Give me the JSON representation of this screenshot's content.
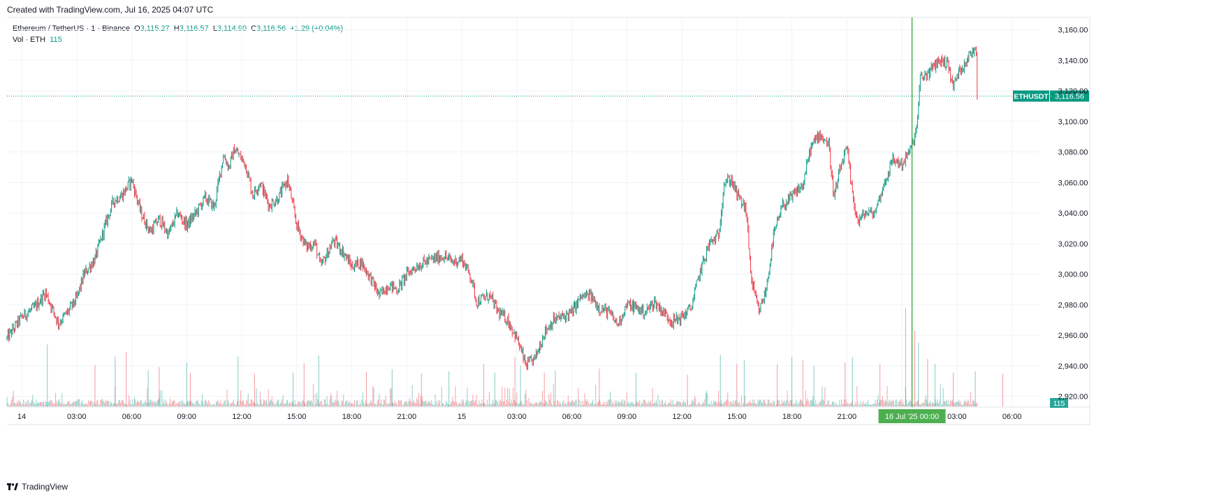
{
  "header": {
    "created_text": "Created with TradingView.com, Jul 16, 2025 04:07 UTC"
  },
  "legend": {
    "symbol": "Ethereum / TetherUS · 1 · Binance",
    "open_label": "O",
    "open": "3,115.27",
    "high_label": "H",
    "high": "3,116.57",
    "low_label": "L",
    "low": "3,114.90",
    "close_label": "C",
    "close": "3,116.56",
    "change": "+1.29 (+0.04%)",
    "vol_label": "Vol · ETH",
    "vol_value": "115"
  },
  "footer": {
    "brand": "TradingView"
  },
  "colors": {
    "up": "#089981",
    "down": "#f23645",
    "cursor": "#4caf50",
    "grid": "#f0f3fa",
    "axis_text": "#131722"
  },
  "chart_data": {
    "type": "candlestick",
    "symbol": "ETHUSDT",
    "interval": "1",
    "last_price": 3116.56,
    "last_price_label": "3,116.56",
    "price_tag_symbol": "ETHUSDT",
    "volume_tag": "115",
    "ylim": [
      2913,
      3168
    ],
    "y_ticks": [
      "3,160.00",
      "3,140.00",
      "3,120.00",
      "3,100.00",
      "3,080.00",
      "3,060.00",
      "3,040.00",
      "3,020.00",
      "3,000.00",
      "2,980.00",
      "2,960.00",
      "2,940.00",
      "2,920.00"
    ],
    "y_tick_values": [
      3160,
      3140,
      3120,
      3100,
      3080,
      3060,
      3040,
      3020,
      3000,
      2980,
      2960,
      2940,
      2920
    ],
    "x_ticks": [
      "14",
      "03:00",
      "06:00",
      "09:00",
      "12:00",
      "15:00",
      "18:00",
      "21:00",
      "15",
      "03:00",
      "06:00",
      "09:00",
      "12:00",
      "15:00",
      "18:00",
      "21:00",
      "00:00",
      "03:00",
      "06:00"
    ],
    "x_tick_hours": [
      0,
      3,
      6,
      9,
      12,
      15,
      18,
      21,
      24,
      27,
      30,
      33,
      36,
      39,
      42,
      45,
      48,
      51,
      54
    ],
    "xlim_hours": [
      -0.8,
      55.5
    ],
    "last_bar_hour": 52.1,
    "cursor_hour": 48.55,
    "cursor_label": "16 Jul '25   00:00",
    "grid": true,
    "price_path": [
      [
        -0.8,
        2958
      ],
      [
        0,
        2972
      ],
      [
        0.7,
        2978
      ],
      [
        1.3,
        2988
      ],
      [
        2,
        2968
      ],
      [
        2.5,
        2975
      ],
      [
        3,
        2984
      ],
      [
        3.4,
        3000
      ],
      [
        4,
        3010
      ],
      [
        4.5,
        3030
      ],
      [
        5,
        3048
      ],
      [
        5.5,
        3052
      ],
      [
        6,
        3062
      ],
      [
        6.5,
        3040
      ],
      [
        7,
        3028
      ],
      [
        7.5,
        3036
      ],
      [
        8,
        3026
      ],
      [
        8.5,
        3040
      ],
      [
        9,
        3032
      ],
      [
        9.5,
        3040
      ],
      [
        10,
        3050
      ],
      [
        10.5,
        3044
      ],
      [
        11,
        3078
      ],
      [
        11.3,
        3070
      ],
      [
        11.6,
        3082
      ],
      [
        12.2,
        3072
      ],
      [
        12.6,
        3052
      ],
      [
        13,
        3060
      ],
      [
        13.5,
        3045
      ],
      [
        14,
        3050
      ],
      [
        14.5,
        3062
      ],
      [
        15,
        3032
      ],
      [
        15.5,
        3018
      ],
      [
        16,
        3020
      ],
      [
        16.3,
        3005
      ],
      [
        16.6,
        3012
      ],
      [
        17,
        3022
      ],
      [
        17.5,
        3015
      ],
      [
        18,
        3005
      ],
      [
        18.5,
        3008
      ],
      [
        19,
        2998
      ],
      [
        19.5,
        2986
      ],
      [
        20,
        2993
      ],
      [
        20.5,
        2990
      ],
      [
        21,
        3000
      ],
      [
        21.5,
        3005
      ],
      [
        22,
        3008
      ],
      [
        22.5,
        3010
      ],
      [
        23,
        3012
      ],
      [
        23.5,
        3008
      ],
      [
        24,
        3010
      ],
      [
        24.5,
        2998
      ],
      [
        24.8,
        2982
      ],
      [
        25.5,
        2986
      ],
      [
        26,
        2975
      ],
      [
        26.5,
        2970
      ],
      [
        27,
        2958
      ],
      [
        27.5,
        2940
      ],
      [
        28,
        2945
      ],
      [
        28.5,
        2962
      ],
      [
        29,
        2970
      ],
      [
        29.5,
        2972
      ],
      [
        30,
        2975
      ],
      [
        30.5,
        2985
      ],
      [
        31,
        2986
      ],
      [
        31.5,
        2978
      ],
      [
        32,
        2975
      ],
      [
        32.5,
        2967
      ],
      [
        33,
        2980
      ],
      [
        33.5,
        2978
      ],
      [
        34,
        2975
      ],
      [
        34.5,
        2982
      ],
      [
        35,
        2975
      ],
      [
        35.5,
        2969
      ],
      [
        36,
        2972
      ],
      [
        36.5,
        2978
      ],
      [
        37,
        3002
      ],
      [
        37.5,
        3020
      ],
      [
        38,
        3025
      ],
      [
        38.3,
        3060
      ],
      [
        38.7,
        3062
      ],
      [
        39,
        3052
      ],
      [
        39.5,
        3042
      ],
      [
        39.8,
        2995
      ],
      [
        40.2,
        2975
      ],
      [
        40.6,
        2990
      ],
      [
        41,
        3025
      ],
      [
        41.5,
        3045
      ],
      [
        42,
        3050
      ],
      [
        42.3,
        3055
      ],
      [
        42.6,
        3058
      ],
      [
        43,
        3082
      ],
      [
        43.5,
        3092
      ],
      [
        44,
        3085
      ],
      [
        44.3,
        3050
      ],
      [
        44.7,
        3072
      ],
      [
        45,
        3082
      ],
      [
        45.3,
        3052
      ],
      [
        45.6,
        3034
      ],
      [
        46,
        3040
      ],
      [
        46.5,
        3040
      ],
      [
        47,
        3058
      ],
      [
        47.5,
        3075
      ],
      [
        48,
        3072
      ],
      [
        48.5,
        3082
      ],
      [
        48.8,
        3095
      ],
      [
        49,
        3128
      ],
      [
        49.5,
        3132
      ],
      [
        50,
        3140
      ],
      [
        50.5,
        3138
      ],
      [
        50.8,
        3122
      ],
      [
        51,
        3130
      ],
      [
        51.5,
        3140
      ],
      [
        52,
        3148
      ],
      [
        52.4,
        3142
      ],
      [
        52.8,
        3122
      ],
      [
        53.2,
        3110
      ],
      [
        53.6,
        3112
      ],
      [
        54,
        3115
      ],
      [
        54.5,
        3114
      ],
      [
        55,
        3116.56
      ]
    ],
    "volume_max": 28800,
    "volume_points": [
      [
        1.4,
        18000
      ],
      [
        4.0,
        12000
      ],
      [
        5.1,
        14500
      ],
      [
        5.7,
        15800
      ],
      [
        6.9,
        10500
      ],
      [
        7.5,
        11400
      ],
      [
        9.0,
        12800
      ],
      [
        9.2,
        9800
      ],
      [
        11.8,
        14500
      ],
      [
        12.7,
        9500
      ],
      [
        14.8,
        9800
      ],
      [
        15.4,
        12500
      ],
      [
        16.2,
        14800
      ],
      [
        18.8,
        10000
      ],
      [
        20.2,
        10800
      ],
      [
        21.8,
        9500
      ],
      [
        23.3,
        10200
      ],
      [
        25.2,
        12400
      ],
      [
        25.8,
        9800
      ],
      [
        26.9,
        14400
      ],
      [
        27.2,
        11800
      ],
      [
        28.5,
        9800
      ],
      [
        29.1,
        10400
      ],
      [
        31.5,
        11000
      ],
      [
        33.5,
        9800
      ],
      [
        36.3,
        9200
      ],
      [
        38.1,
        14900
      ],
      [
        39.0,
        12400
      ],
      [
        39.4,
        13500
      ],
      [
        41.2,
        12200
      ],
      [
        42.0,
        14400
      ],
      [
        42.6,
        13400
      ],
      [
        43.2,
        11800
      ],
      [
        44.9,
        12800
      ],
      [
        45.3,
        14300
      ],
      [
        46.8,
        12200
      ],
      [
        48.2,
        28500
      ],
      [
        48.7,
        22000
      ],
      [
        48.9,
        18500
      ],
      [
        49.4,
        13800
      ],
      [
        49.8,
        12400
      ],
      [
        50.8,
        9800
      ],
      [
        52.0,
        10200
      ],
      [
        53.5,
        9500
      ]
    ]
  }
}
